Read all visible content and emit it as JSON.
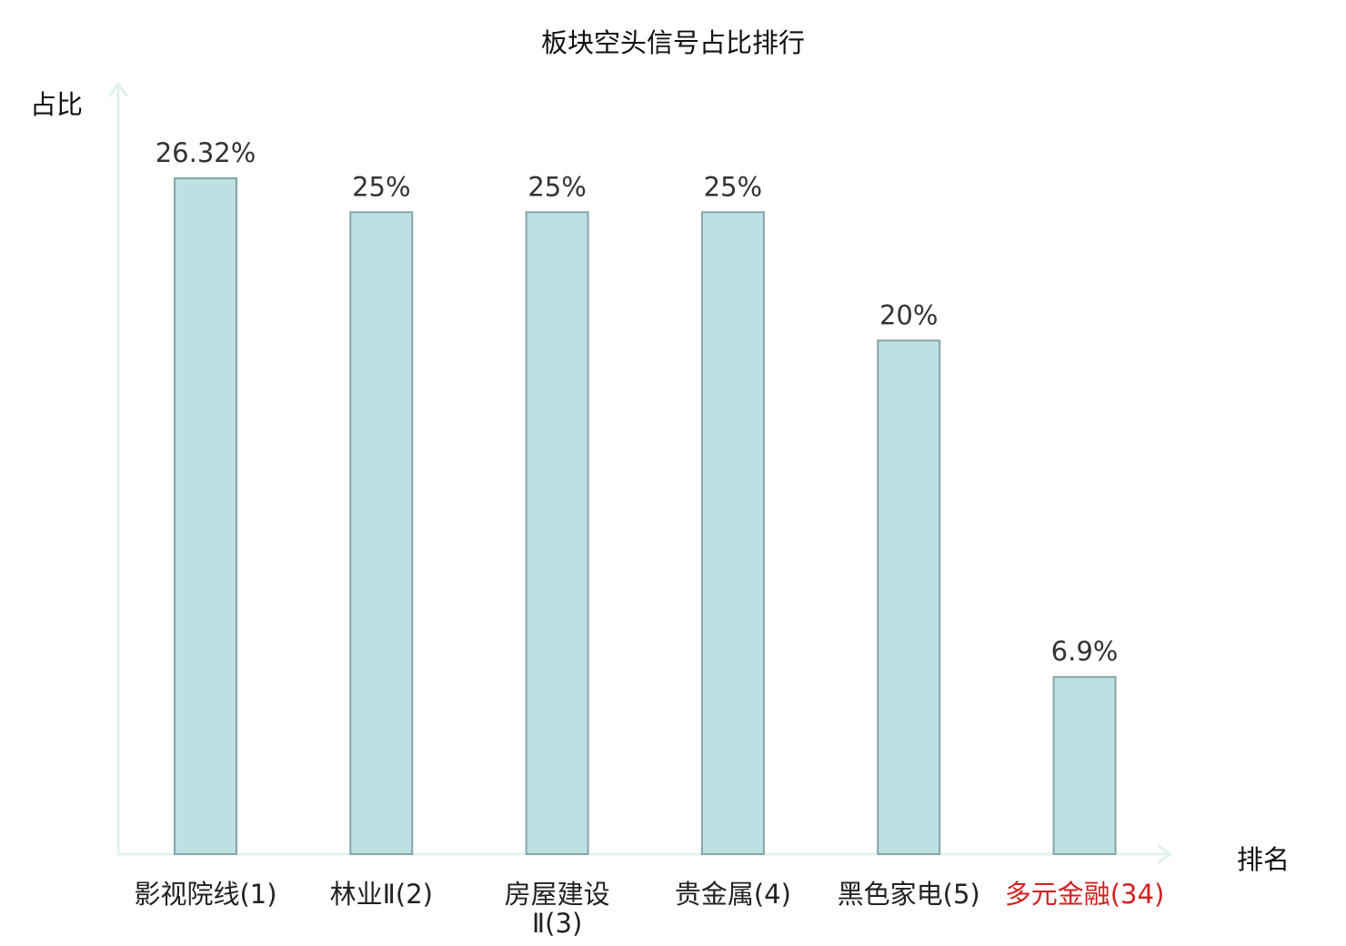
{
  "chart_data": {
    "type": "bar",
    "title": "板块空头信号占比排行",
    "ylabel": "占比",
    "xlabel": "排名",
    "categories": [
      "影视院线(1)",
      "林业Ⅱ(2)",
      "房屋建设Ⅱ(3)",
      "贵金属(4)",
      "黑色家电(5)",
      "多元金融(34)"
    ],
    "values": [
      26.32,
      25,
      25,
      25,
      20,
      6.9
    ],
    "value_labels": [
      "26.32%",
      "25%",
      "25%",
      "25%",
      "20%",
      "6.9%"
    ],
    "highlight_index": 5,
    "ylim": [
      0,
      30
    ],
    "grid": false,
    "legend": "none",
    "colors": {
      "bar_fill": "#bde0e3",
      "bar_stroke": "#86a6a8",
      "axis": "#e0f2f0",
      "highlight_text": "#d42020"
    }
  }
}
